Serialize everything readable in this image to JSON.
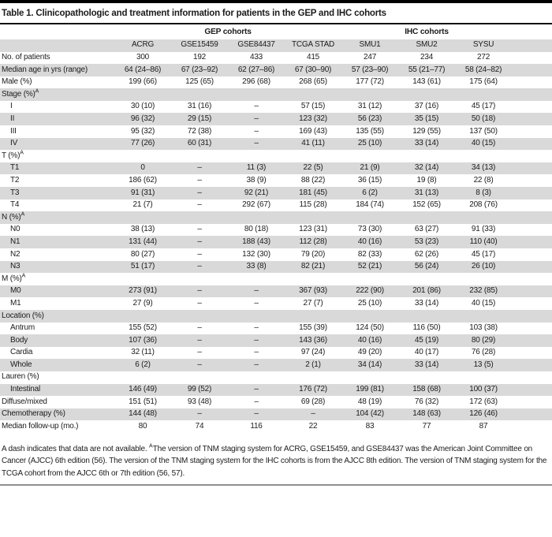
{
  "table": {
    "title": "Table 1. Clinicopathologic and treatment information for patients in the GEP and IHC cohorts",
    "col_groups": [
      {
        "label": "GEP cohorts"
      },
      {
        "label": "IHC cohorts"
      }
    ],
    "columns": [
      "ACRG",
      "GSE15459",
      "GSE84437",
      "TCGA STAD",
      "SMU1",
      "SMU2",
      "SYSU"
    ],
    "rows": [
      {
        "label": "No. of patients",
        "indent": false,
        "values": [
          "300",
          "192",
          "433",
          "415",
          "247",
          "234",
          "272"
        ]
      },
      {
        "label": "Median age in yrs (range)",
        "indent": false,
        "values": [
          "64 (24–86)",
          "67 (23–92)",
          "62 (27–86)",
          "67 (30–90)",
          "57 (23–90)",
          "55 (21–77)",
          "58 (24–82)"
        ]
      },
      {
        "label": "Male (%)",
        "indent": false,
        "values": [
          "199 (66)",
          "125 (65)",
          "296 (68)",
          "268 (65)",
          "177 (72)",
          "143 (61)",
          "175 (64)"
        ]
      },
      {
        "label": "Stage (%)",
        "sup": "A",
        "section": true
      },
      {
        "label": "I",
        "indent": true,
        "values": [
          "30 (10)",
          "31 (16)",
          "–",
          "57 (15)",
          "31 (12)",
          "37 (16)",
          "45 (17)"
        ]
      },
      {
        "label": "II",
        "indent": true,
        "values": [
          "96 (32)",
          "29 (15)",
          "–",
          "123 (32)",
          "56 (23)",
          "35 (15)",
          "50 (18)"
        ]
      },
      {
        "label": "III",
        "indent": true,
        "values": [
          "95 (32)",
          "72 (38)",
          "–",
          "169 (43)",
          "135 (55)",
          "129 (55)",
          "137 (50)"
        ]
      },
      {
        "label": "IV",
        "indent": true,
        "values": [
          "77 (26)",
          "60 (31)",
          "–",
          "41 (11)",
          "25 (10)",
          "33 (14)",
          "40 (15)"
        ]
      },
      {
        "label": "T (%)",
        "sup": "A",
        "section": true
      },
      {
        "label": "T1",
        "indent": true,
        "values": [
          "0",
          "–",
          "11 (3)",
          "22 (5)",
          "21 (9)",
          "32 (14)",
          "34 (13)"
        ]
      },
      {
        "label": "T2",
        "indent": true,
        "values": [
          "186 (62)",
          "–",
          "38 (9)",
          "88 (22)",
          "36 (15)",
          "19 (8)",
          "22 (8)"
        ]
      },
      {
        "label": "T3",
        "indent": true,
        "values": [
          "91 (31)",
          "–",
          "92 (21)",
          "181 (45)",
          "6 (2)",
          "31 (13)",
          "8 (3)"
        ]
      },
      {
        "label": "T4",
        "indent": true,
        "values": [
          "21 (7)",
          "–",
          "292 (67)",
          "115 (28)",
          "184 (74)",
          "152 (65)",
          "208 (76)"
        ]
      },
      {
        "label": "N (%)",
        "sup": "A",
        "section": true
      },
      {
        "label": "N0",
        "indent": true,
        "values": [
          "38 (13)",
          "–",
          "80 (18)",
          "123 (31)",
          "73 (30)",
          "63 (27)",
          "91 (33)"
        ]
      },
      {
        "label": "N1",
        "indent": true,
        "values": [
          "131 (44)",
          "–",
          "188 (43)",
          "112 (28)",
          "40 (16)",
          "53 (23)",
          "110 (40)"
        ]
      },
      {
        "label": "N2",
        "indent": true,
        "values": [
          "80 (27)",
          "–",
          "132 (30)",
          "79 (20)",
          "82 (33)",
          "62 (26)",
          "45 (17)"
        ]
      },
      {
        "label": "N3",
        "indent": true,
        "values": [
          "51 (17)",
          "–",
          "33 (8)",
          "82 (21)",
          "52 (21)",
          "56 (24)",
          "26 (10)"
        ]
      },
      {
        "label": "M (%)",
        "sup": "A",
        "section": true
      },
      {
        "label": "M0",
        "indent": true,
        "values": [
          "273 (91)",
          "–",
          "–",
          "367 (93)",
          "222 (90)",
          "201 (86)",
          "232 (85)"
        ]
      },
      {
        "label": "M1",
        "indent": true,
        "values": [
          "27 (9)",
          "–",
          "–",
          "27 (7)",
          "25 (10)",
          "33 (14)",
          "40 (15)"
        ]
      },
      {
        "label": "Location (%)",
        "section": true
      },
      {
        "label": "Antrum",
        "indent": true,
        "values": [
          "155 (52)",
          "–",
          "–",
          "155 (39)",
          "124 (50)",
          "116 (50)",
          "103 (38)"
        ]
      },
      {
        "label": "Body",
        "indent": true,
        "values": [
          "107 (36)",
          "–",
          "–",
          "143 (36)",
          "40 (16)",
          "45 (19)",
          "80 (29)"
        ]
      },
      {
        "label": "Cardia",
        "indent": true,
        "values": [
          "32 (11)",
          "–",
          "–",
          "97 (24)",
          "49 (20)",
          "40 (17)",
          "76 (28)"
        ]
      },
      {
        "label": "Whole",
        "indent": true,
        "values": [
          "6 (2)",
          "–",
          "–",
          "2 (1)",
          "34 (14)",
          "33 (14)",
          "13 (5)"
        ]
      },
      {
        "label": "Lauren (%)",
        "section": true
      },
      {
        "label": "Intestinal",
        "indent": true,
        "values": [
          "146 (49)",
          "99 (52)",
          "–",
          "176 (72)",
          "199 (81)",
          "158 (68)",
          "100 (37)"
        ]
      },
      {
        "label": "Diffuse/mixed",
        "indent": false,
        "values": [
          "151 (51)",
          "93 (48)",
          "–",
          "69 (28)",
          "48 (19)",
          "76 (32)",
          "172 (63)"
        ]
      },
      {
        "label": "Chemotherapy (%)",
        "indent": false,
        "values": [
          "144 (48)",
          "–",
          "–",
          "–",
          "104 (42)",
          "148 (63)",
          "126 (46)"
        ]
      },
      {
        "label": "Median follow-up (mo.)",
        "indent": false,
        "values": [
          "80",
          "74",
          "116",
          "22",
          "83",
          "77",
          "87"
        ]
      }
    ],
    "footnote": {
      "before": "A dash indicates that data are not available. ",
      "sup": "A",
      "after": "The version of TNM staging system for ACRG, GSE15459, and GSE84437 was the American Joint Committee on Cancer (AJCC) 6th edition (56). The version of the TNM staging system for the IHC cohorts is from the AJCC 8th edition. The version of TNM staging system for the TCGA cohort from the AJCC 6th or 7th edition (56, 57)."
    },
    "colors": {
      "stripe": "#d9d9d9",
      "top_bar": "#000000",
      "bottom_rule": "#8e8e8e"
    }
  }
}
